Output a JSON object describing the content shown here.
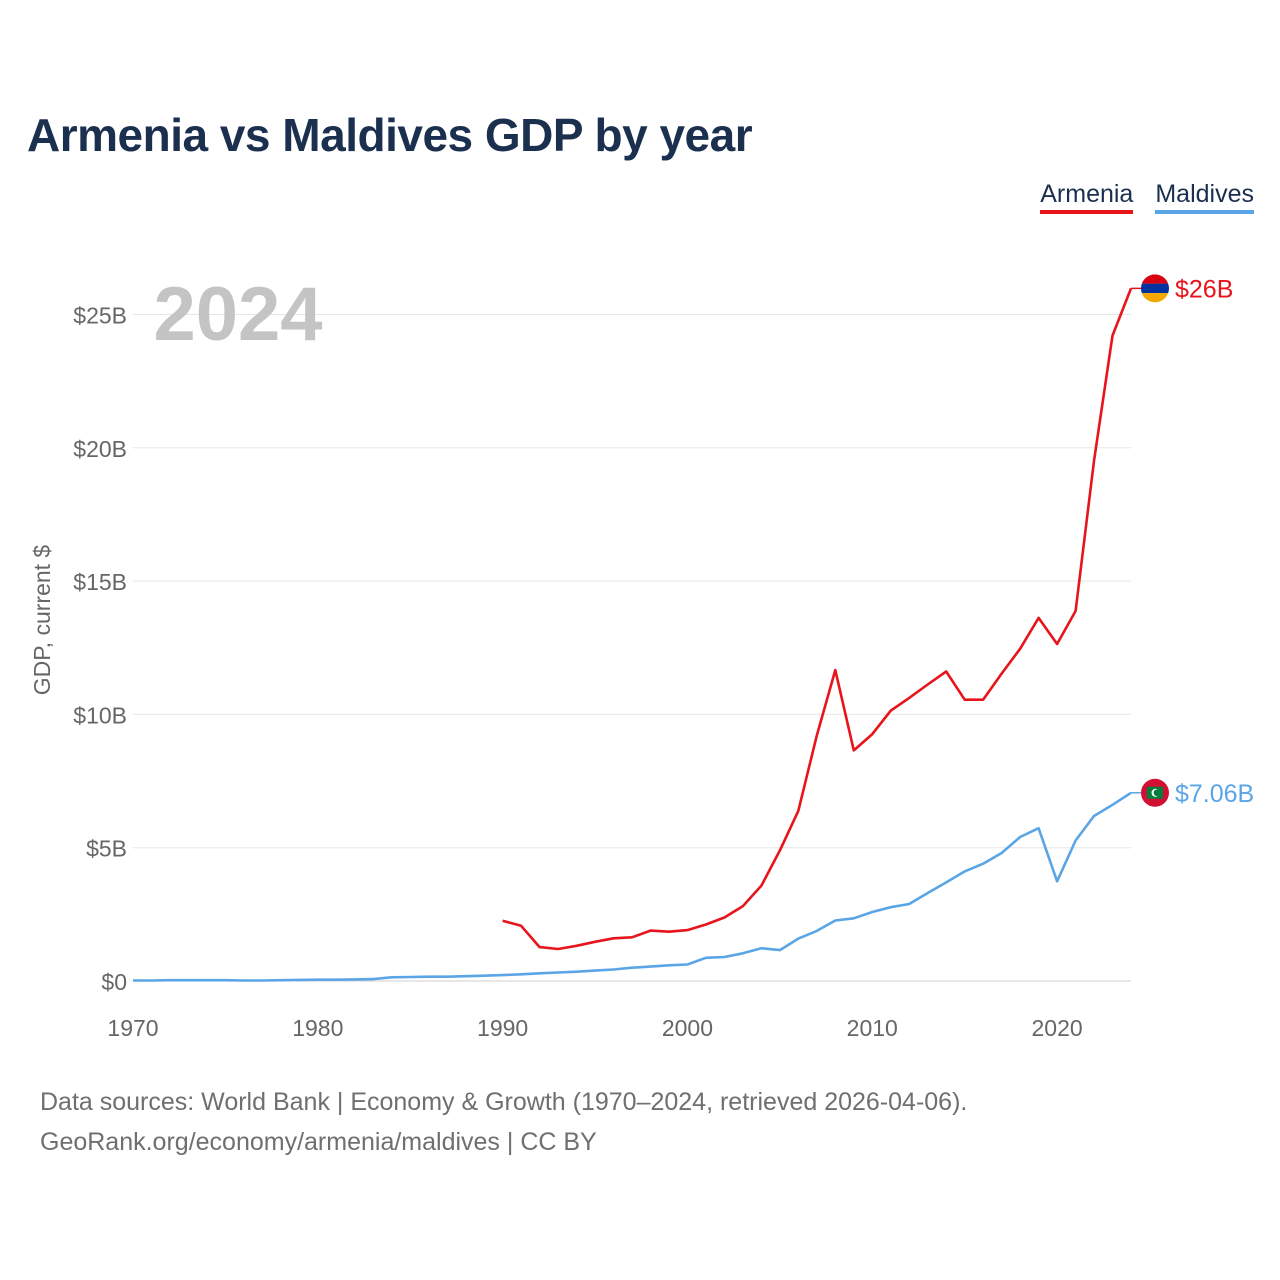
{
  "title": "Armenia vs Maldives GDP by year",
  "legend": [
    {
      "label": "Armenia",
      "color": "#e8141b"
    },
    {
      "label": "Maldives",
      "color": "#5aa5e6"
    }
  ],
  "chart_data": {
    "type": "line",
    "title": "Armenia vs Maldives GDP by year",
    "year_watermark": "2024",
    "ylabel": "GDP, current $",
    "xlabel": "",
    "xlim": [
      1970,
      2024
    ],
    "ylim": [
      0,
      26.5
    ],
    "x_ticks": [
      1970,
      1980,
      1990,
      2000,
      2010,
      2020
    ],
    "x_tick_labels": [
      "1970",
      "1980",
      "1990",
      "2000",
      "2010",
      "2020"
    ],
    "y_ticks": [
      0,
      5,
      10,
      15,
      20,
      25
    ],
    "y_tick_labels": [
      "$0",
      "$5B",
      "$10B",
      "$15B",
      "$20B",
      "$25B"
    ],
    "grid": true,
    "units": "billions of current US$",
    "series": [
      {
        "name": "Armenia",
        "color": "#e8141b",
        "end_label": "$26B",
        "flag": [
          "#d90012",
          "#0033a0",
          "#f2a800"
        ],
        "x": [
          1990,
          1991,
          1992,
          1993,
          1994,
          1995,
          1996,
          1997,
          1998,
          1999,
          2000,
          2001,
          2002,
          2003,
          2004,
          2005,
          2006,
          2007,
          2008,
          2009,
          2010,
          2011,
          2012,
          2013,
          2014,
          2015,
          2016,
          2017,
          2018,
          2019,
          2020,
          2021,
          2022,
          2023,
          2024
        ],
        "values": [
          2.26,
          2.07,
          1.27,
          1.2,
          1.32,
          1.47,
          1.6,
          1.64,
          1.89,
          1.85,
          1.91,
          2.12,
          2.38,
          2.81,
          3.58,
          4.9,
          6.38,
          9.21,
          11.66,
          8.65,
          9.26,
          10.14,
          10.62,
          11.12,
          11.61,
          10.55,
          10.55,
          11.53,
          12.46,
          13.62,
          12.64,
          13.88,
          19.51,
          24.21,
          25.98
        ]
      },
      {
        "name": "Maldives",
        "color": "#5aa5e6",
        "end_label": "$7.06B",
        "flag": [
          "#d21034",
          "#007e3a",
          "#ffffff"
        ],
        "x": [
          1970,
          1971,
          1972,
          1973,
          1974,
          1975,
          1976,
          1977,
          1978,
          1979,
          1980,
          1981,
          1982,
          1983,
          1984,
          1985,
          1986,
          1987,
          1988,
          1989,
          1990,
          1991,
          1992,
          1993,
          1994,
          1995,
          1996,
          1997,
          1998,
          1999,
          2000,
          2001,
          2002,
          2003,
          2004,
          2005,
          2006,
          2007,
          2008,
          2009,
          2010,
          2011,
          2012,
          2013,
          2014,
          2015,
          2016,
          2017,
          2018,
          2019,
          2020,
          2021,
          2022,
          2023,
          2024
        ],
        "values": [
          0.02,
          0.02,
          0.03,
          0.03,
          0.03,
          0.03,
          0.02,
          0.02,
          0.03,
          0.04,
          0.05,
          0.05,
          0.06,
          0.07,
          0.14,
          0.15,
          0.16,
          0.16,
          0.18,
          0.2,
          0.22,
          0.25,
          0.29,
          0.32,
          0.35,
          0.39,
          0.43,
          0.5,
          0.54,
          0.59,
          0.62,
          0.87,
          0.9,
          1.04,
          1.23,
          1.16,
          1.59,
          1.88,
          2.27,
          2.35,
          2.59,
          2.77,
          2.89,
          3.3,
          3.7,
          4.11,
          4.4,
          4.8,
          5.4,
          5.73,
          3.74,
          5.27,
          6.19,
          6.61,
          7.06
        ]
      }
    ]
  },
  "footer": {
    "line1": "Data sources: World Bank | Economy & Growth (1970–2024, retrieved 2026-04-06).",
    "line2": "GeoRank.org/economy/armenia/maldives | CC BY"
  }
}
